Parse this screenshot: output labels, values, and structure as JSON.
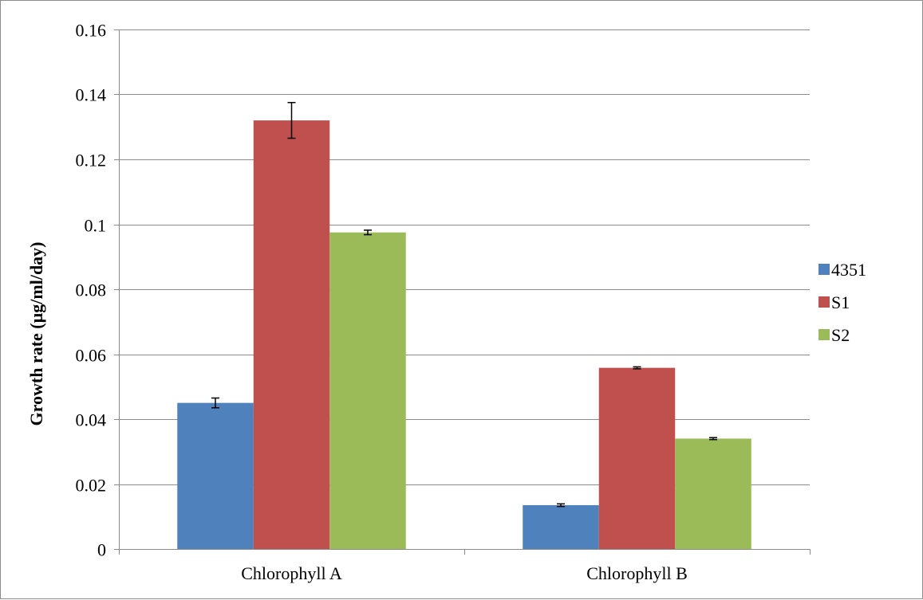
{
  "chart_data": {
    "type": "bar",
    "title": "",
    "xlabel": "",
    "ylabel": "Growth rate (µg/ml/day)",
    "ylim": [
      0,
      0.16
    ],
    "ytick_step": 0.02,
    "yticks": [
      "0",
      "0.02",
      "0.04",
      "0.06",
      "0.08",
      "0.1",
      "0.12",
      "0.14",
      "0.16"
    ],
    "grid": true,
    "legend_position": "right",
    "categories": [
      "Chlorophyll A",
      "Chlorophyll B"
    ],
    "series": [
      {
        "name": "4351",
        "color": "#4f81bd",
        "values": [
          0.045,
          0.0135
        ],
        "errors": [
          0.0015,
          0.0004
        ]
      },
      {
        "name": "S1",
        "color": "#c0504d",
        "values": [
          0.132,
          0.0558
        ],
        "errors": [
          0.0055,
          0.0003
        ]
      },
      {
        "name": "S2",
        "color": "#9bbb59",
        "values": [
          0.0975,
          0.034
        ],
        "errors": [
          0.0007,
          0.0003
        ]
      }
    ]
  }
}
